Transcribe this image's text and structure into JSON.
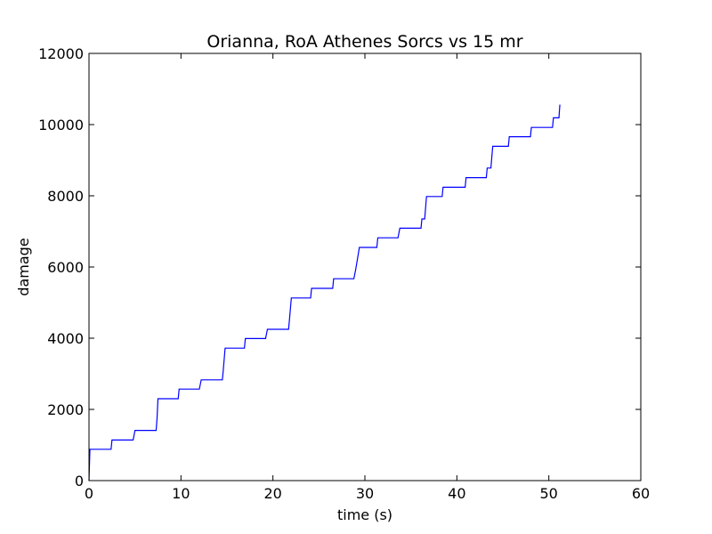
{
  "chart_data": {
    "type": "line",
    "title": "Orianna, RoA Athenes Sorcs vs 15 mr",
    "xlabel": "time (s)",
    "ylabel": "damage",
    "xlim": [
      0,
      60
    ],
    "ylim": [
      0,
      12000
    ],
    "xticks": [
      0,
      10,
      20,
      30,
      40,
      50,
      60
    ],
    "yticks": [
      0,
      2000,
      4000,
      6000,
      8000,
      10000,
      12000
    ],
    "grid": false,
    "legend": "none",
    "series": [
      {
        "color": "#0000ff",
        "points": [
          [
            0,
            0
          ],
          [
            0.1,
            880
          ],
          [
            2.4,
            880
          ],
          [
            2.5,
            1140
          ],
          [
            4.8,
            1140
          ],
          [
            5.0,
            1410
          ],
          [
            7.3,
            1410
          ],
          [
            7.4,
            1750
          ],
          [
            7.5,
            2300
          ],
          [
            9.7,
            2300
          ],
          [
            9.8,
            2570
          ],
          [
            12.0,
            2570
          ],
          [
            12.2,
            2830
          ],
          [
            14.5,
            2830
          ],
          [
            14.6,
            3100
          ],
          [
            14.8,
            3720
          ],
          [
            16.9,
            3720
          ],
          [
            17.0,
            3990
          ],
          [
            19.2,
            3990
          ],
          [
            19.4,
            4250
          ],
          [
            21.7,
            4250
          ],
          [
            21.8,
            4530
          ],
          [
            22.0,
            5130
          ],
          [
            24.1,
            5130
          ],
          [
            24.2,
            5400
          ],
          [
            26.5,
            5400
          ],
          [
            26.6,
            5670
          ],
          [
            28.8,
            5670
          ],
          [
            29.0,
            5930
          ],
          [
            29.4,
            6550
          ],
          [
            31.3,
            6550
          ],
          [
            31.4,
            6820
          ],
          [
            33.6,
            6820
          ],
          [
            33.8,
            7090
          ],
          [
            36.1,
            7090
          ],
          [
            36.2,
            7350
          ],
          [
            36.5,
            7350
          ],
          [
            36.7,
            7980
          ],
          [
            38.4,
            7980
          ],
          [
            38.5,
            8240
          ],
          [
            40.9,
            8240
          ],
          [
            41.0,
            8510
          ],
          [
            43.2,
            8510
          ],
          [
            43.3,
            8780
          ],
          [
            43.7,
            8780
          ],
          [
            43.9,
            9390
          ],
          [
            45.6,
            9390
          ],
          [
            45.7,
            9660
          ],
          [
            48.0,
            9660
          ],
          [
            48.1,
            9920
          ],
          [
            50.4,
            9920
          ],
          [
            50.5,
            10190
          ],
          [
            51.1,
            10190
          ],
          [
            51.2,
            10560
          ]
        ]
      }
    ]
  }
}
